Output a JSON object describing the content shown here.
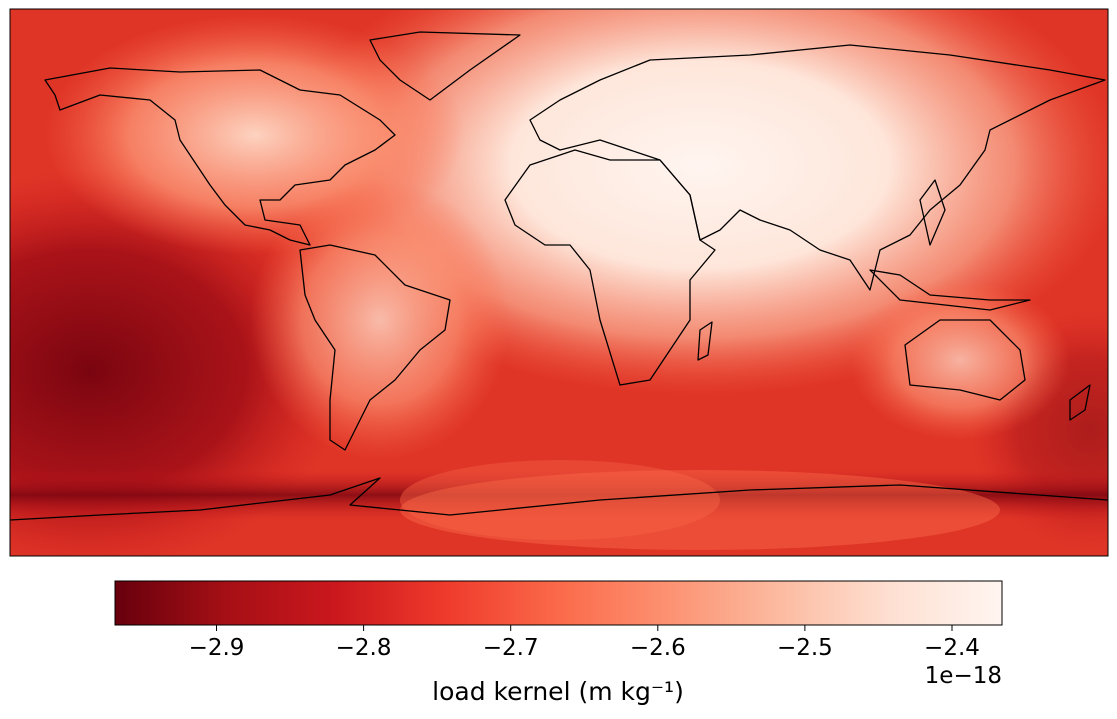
{
  "chart_data": {
    "type": "heatmap",
    "colormap": "Reds",
    "colors": [
      "#67000d",
      "#a50f15",
      "#cb181d",
      "#ef3b2c",
      "#fb6a4a",
      "#fc9272",
      "#fcbba1",
      "#fee0d2",
      "#fff5f0"
    ],
    "colorbar": {
      "label": "load kernel (m kg⁻¹)",
      "offset_label": "1e−18",
      "lim": [
        -2.969,
        -2.366
      ],
      "ticks": [
        {
          "value": -2.9,
          "label": "−2.9"
        },
        {
          "value": -2.8,
          "label": "−2.8"
        },
        {
          "value": -2.7,
          "label": "−2.7"
        },
        {
          "value": -2.6,
          "label": "−2.6"
        },
        {
          "value": -2.5,
          "label": "−2.5"
        },
        {
          "value": -2.4,
          "label": "−2.4"
        }
      ]
    }
  }
}
